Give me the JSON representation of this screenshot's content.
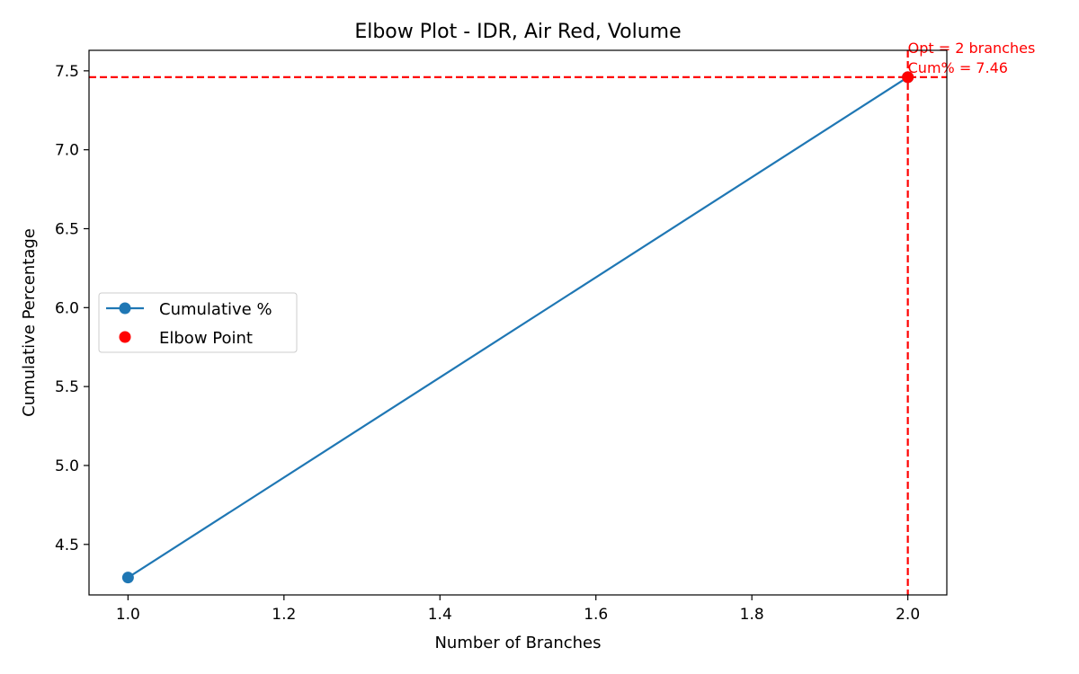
{
  "chart_data": {
    "type": "line",
    "title": "Elbow Plot - IDR, Air Red, Volume",
    "xlabel": "Number of Branches",
    "ylabel": "Cumulative Percentage",
    "xlim": [
      0.95,
      2.05
    ],
    "ylim": [
      4.18,
      7.63
    ],
    "xticks": [
      1.0,
      1.2,
      1.4,
      1.6,
      1.8,
      2.0
    ],
    "xtick_labels": [
      "1.0",
      "1.2",
      "1.4",
      "1.6",
      "1.8",
      "2.0"
    ],
    "yticks": [
      4.5,
      5.0,
      5.5,
      6.0,
      6.5,
      7.0,
      7.5
    ],
    "ytick_labels": [
      "4.5",
      "5.0",
      "5.5",
      "6.0",
      "6.5",
      "7.0",
      "7.5"
    ],
    "grid": false,
    "legend_position": "center-left",
    "series": [
      {
        "name": "Cumulative %",
        "x": [
          1,
          2
        ],
        "y": [
          4.29,
          7.46
        ],
        "color": "#1f77b4",
        "marker": "circle"
      }
    ],
    "elbow": {
      "name": "Elbow Point",
      "x": 2,
      "y": 7.46,
      "color": "#ff0000"
    },
    "reference_lines": {
      "x": 2,
      "y": 7.46,
      "style": "dashed",
      "color": "#ff0000"
    },
    "annotation": {
      "lines": [
        "Opt = 2 branches",
        "Cum% = 7.46"
      ],
      "color": "#ff0000"
    }
  }
}
